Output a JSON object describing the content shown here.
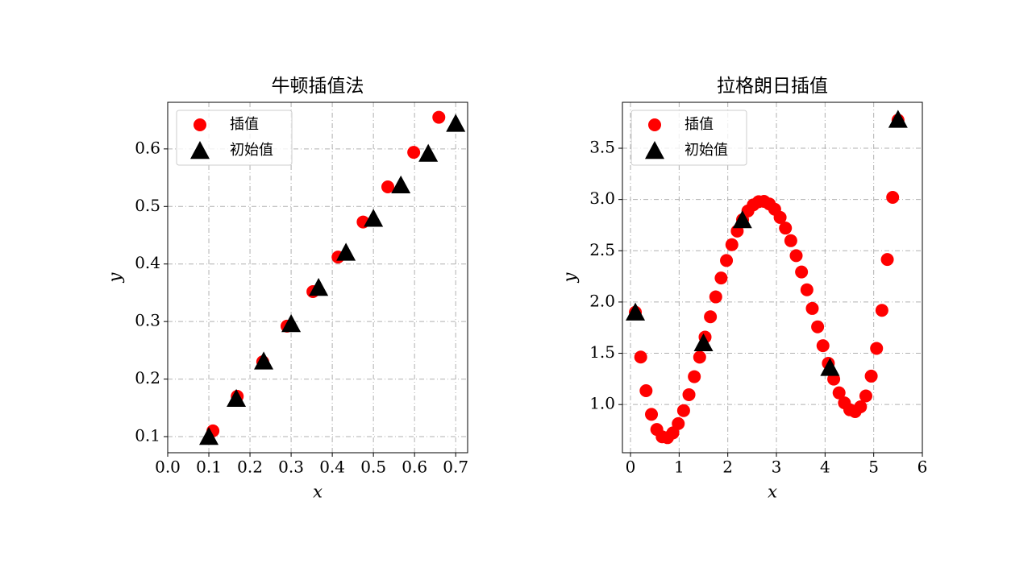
{
  "chart_data": [
    {
      "type": "scatter",
      "title": "牛顿插值法",
      "x_label": "x",
      "y_label": "y",
      "xlim": [
        0,
        0.729
      ],
      "ylim": [
        0.072,
        0.681
      ],
      "xticks": [
        {
          "value": 0,
          "label": "0.0"
        },
        0.1,
        0.2,
        0.3,
        0.4,
        0.5,
        0.6,
        0.7
      ],
      "yticks": [
        0.1,
        0.2,
        0.3,
        0.4,
        0.5,
        0.6
      ],
      "grid": true,
      "legend": "upper left",
      "series": [
        {
          "name": "插值",
          "color": "#ff0000",
          "marker": "circle",
          "x": [
            0.11,
            0.169,
            0.231,
            0.29,
            0.353,
            0.414,
            0.475,
            0.535,
            0.598,
            0.659
          ],
          "values": [
            0.11,
            0.17,
            0.23,
            0.292,
            0.352,
            0.412,
            0.473,
            0.534,
            0.594,
            0.655
          ]
        },
        {
          "name": "初始值",
          "color": "#000000",
          "marker": "triangle",
          "x": [
            0.1,
            0.1667,
            0.2333,
            0.3,
            0.3667,
            0.4333,
            0.5,
            0.5667,
            0.6333,
            0.7
          ],
          "values": [
            0.1,
            0.166,
            0.231,
            0.296,
            0.359,
            0.42,
            0.479,
            0.537,
            0.592,
            0.644
          ]
        }
      ]
    },
    {
      "type": "scatter",
      "title": "拉格朗日插值",
      "x_label": "x",
      "y_label": "y",
      "xlim": [
        -0.166,
        6
      ],
      "ylim": [
        0.53,
        3.948
      ],
      "xticks": [
        0,
        1,
        2,
        3,
        4,
        5,
        6
      ],
      "yticks": [
        {
          "value": 1,
          "label": "1.0"
        },
        1.5,
        {
          "value": 2,
          "label": "2.0"
        },
        2.5,
        {
          "value": 3,
          "label": "3.0"
        },
        3.5
      ],
      "grid": true,
      "legend": "upper left",
      "series": [
        {
          "name": "插值",
          "color": "#ff0000",
          "marker": "circle",
          "x": [
            0.1,
            0.21,
            0.32,
            0.431,
            0.541,
            0.651,
            0.761,
            0.871,
            0.982,
            1.092,
            1.202,
            1.312,
            1.422,
            1.533,
            1.643,
            1.753,
            1.863,
            1.973,
            2.084,
            2.194,
            2.304,
            2.414,
            2.524,
            2.635,
            2.745,
            2.855,
            2.965,
            3.076,
            3.186,
            3.296,
            3.406,
            3.516,
            3.627,
            3.737,
            3.847,
            3.957,
            4.067,
            4.178,
            4.288,
            4.398,
            4.508,
            4.618,
            4.729,
            4.839,
            4.949,
            5.059,
            5.169,
            5.28,
            5.39,
            5.5
          ],
          "values": [
            1.9,
            1.463,
            1.135,
            0.904,
            0.757,
            0.685,
            0.677,
            0.723,
            0.814,
            0.941,
            1.096,
            1.272,
            1.462,
            1.658,
            1.856,
            2.05,
            2.234,
            2.405,
            2.559,
            2.692,
            2.803,
            2.888,
            2.947,
            2.979,
            2.982,
            2.956,
            2.905,
            2.825,
            2.721,
            2.598,
            2.452,
            2.293,
            2.119,
            1.937,
            1.758,
            1.574,
            1.402,
            1.248,
            1.114,
            1.016,
            0.949,
            0.931,
            0.978,
            1.084,
            1.277,
            1.548,
            1.919,
            2.415,
            3.021,
            3.774
          ]
        },
        {
          "name": "初始值",
          "color": "#000000",
          "marker": "triangle",
          "x": [
            0.1,
            1.5,
            2.3,
            4.1,
            5.5
          ],
          "values": [
            1.9,
            1.6,
            2.8,
            1.36,
            3.78
          ]
        }
      ]
    }
  ]
}
